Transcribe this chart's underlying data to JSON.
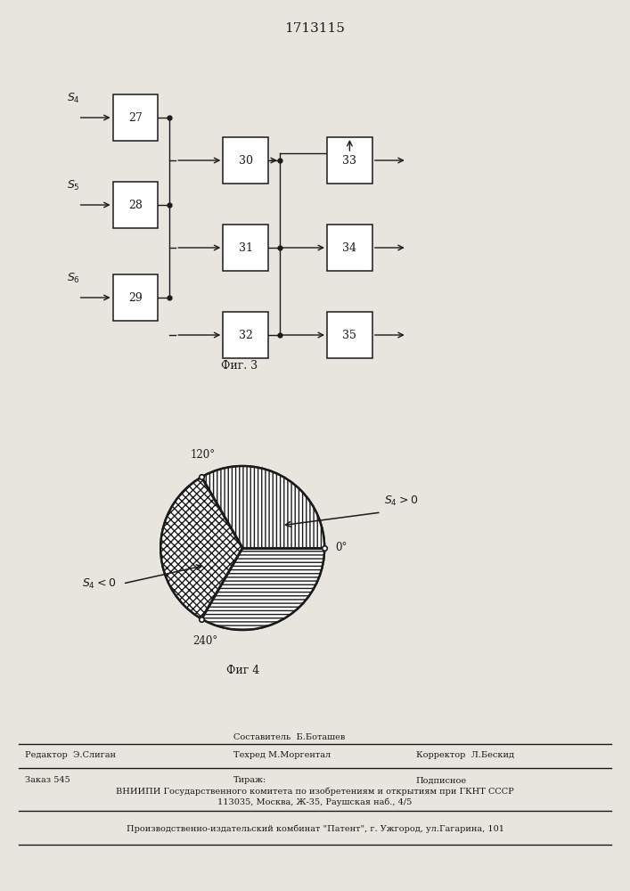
{
  "title": "1713115",
  "fig3_caption": "Фиг. 3",
  "fig4_caption": "Фиг 4",
  "bg": "#e8e5de",
  "tc": "#1a1a1a",
  "footer_composer": "Составитель  Б.Боташев",
  "footer_editor": "Редактор  Э.Слиган",
  "footer_techred": "Техред М.Моргентал",
  "footer_corrector": "Корректор  Л.Бескид",
  "footer_order": "Заказ 545",
  "footer_tirazh": "Тираж:",
  "footer_podpisnoe": "Подписное",
  "footer_vniipи": "ВНИИПИ Государственного комитета по изобретениям и открытиям при ГКНТ СССР",
  "footer_address": "113035, Москва, Ж-35, Раушская наб., 4/5",
  "footer_factory": "Производственно-издательский комбинат \"Патент\", г. Ужгород, ул.Гагарина, 101"
}
